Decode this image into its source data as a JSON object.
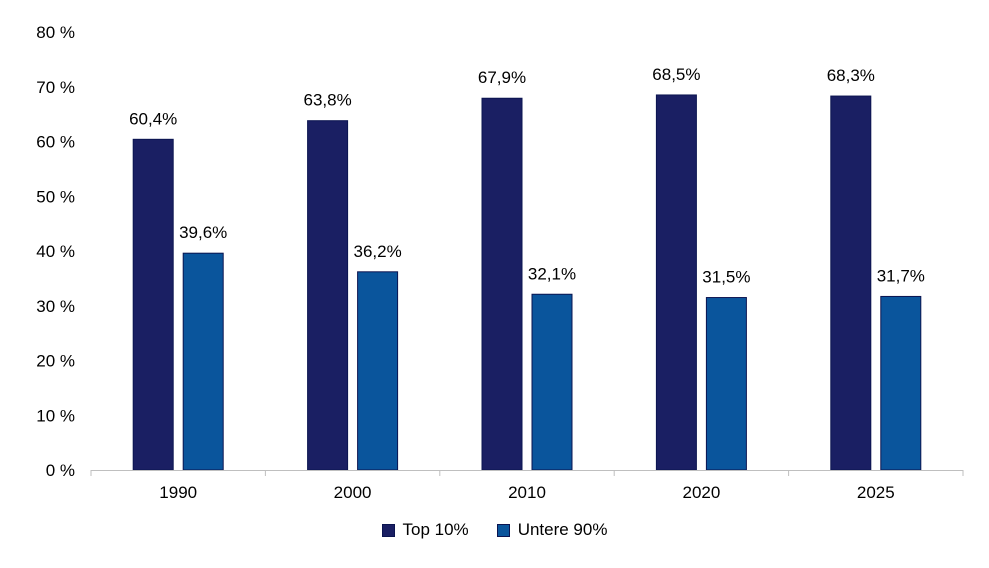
{
  "chart_data": {
    "type": "bar",
    "categories": [
      "1990",
      "2000",
      "2010",
      "2020",
      "2025"
    ],
    "series": [
      {
        "name": "Top 10%",
        "values": [
          60.4,
          63.8,
          67.9,
          68.5,
          68.3
        ],
        "labels": [
          "60,4%",
          "63,8%",
          "67,9%",
          "68,5%",
          "68,3%"
        ],
        "color": "#1a1f63"
      },
      {
        "name": "Untere 90%",
        "values": [
          39.6,
          36.2,
          32.1,
          31.5,
          31.7
        ],
        "labels": [
          "39,6%",
          "36,2%",
          "32,1%",
          "31,5%",
          "31,7%"
        ],
        "color": "#0a559c"
      }
    ],
    "yticks": [
      "0 %",
      "10 %",
      "20 %",
      "30 %",
      "40 %",
      "50 %",
      "60 %",
      "70 %",
      "80 %"
    ],
    "ylim": [
      0,
      80
    ],
    "grid": false,
    "legend_position": "bottom-center"
  }
}
